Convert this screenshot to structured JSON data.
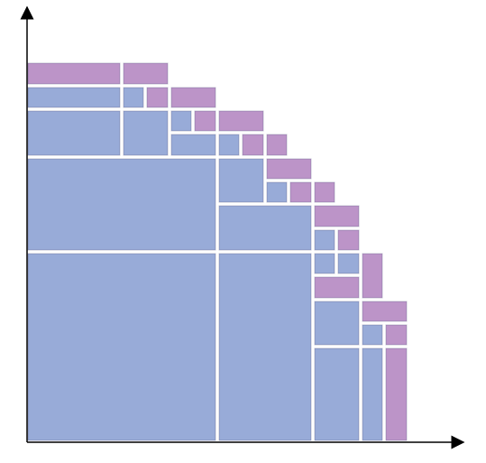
{
  "colors": {
    "blue": "#98abd8",
    "purple": "#bc94c8",
    "axis": "#000000",
    "background": "#ffffff"
  },
  "axes": {
    "x_arrow": true,
    "y_arrow": true
  },
  "blocks": [
    {
      "id": "r0-a",
      "color": "purple"
    },
    {
      "id": "r0-b",
      "color": "purple"
    },
    {
      "id": "r1-a",
      "color": "blue"
    },
    {
      "id": "r1-b",
      "color": "blue"
    },
    {
      "id": "r1-c",
      "color": "purple"
    },
    {
      "id": "r1-d",
      "color": "purple"
    },
    {
      "id": "r2-a",
      "color": "blue"
    },
    {
      "id": "r2-b",
      "color": "blue"
    },
    {
      "id": "r2-c",
      "color": "blue"
    },
    {
      "id": "r2-d",
      "color": "purple"
    },
    {
      "id": "r2-e",
      "color": "purple"
    },
    {
      "id": "r3-c",
      "color": "blue"
    },
    {
      "id": "r3-d",
      "color": "blue"
    },
    {
      "id": "r3-e",
      "color": "purple"
    },
    {
      "id": "r3-f",
      "color": "purple"
    },
    {
      "id": "big-a",
      "color": "blue"
    },
    {
      "id": "r4-d",
      "color": "blue"
    },
    {
      "id": "r4-e",
      "color": "purple"
    },
    {
      "id": "r5-e",
      "color": "blue"
    },
    {
      "id": "r5-f",
      "color": "purple"
    },
    {
      "id": "r5-g",
      "color": "purple"
    },
    {
      "id": "r6-d",
      "color": "blue"
    },
    {
      "id": "r6-e",
      "color": "purple"
    },
    {
      "id": "r7-e",
      "color": "blue"
    },
    {
      "id": "r7-f",
      "color": "purple"
    },
    {
      "id": "r8-e",
      "color": "blue"
    },
    {
      "id": "r8-f",
      "color": "blue"
    },
    {
      "id": "r8-g",
      "color": "purple"
    },
    {
      "id": "r9-f",
      "color": "purple"
    },
    {
      "id": "r9-g",
      "color": "purple"
    },
    {
      "id": "r10-f",
      "color": "blue"
    },
    {
      "id": "r10-g",
      "color": "blue"
    },
    {
      "id": "r10-h",
      "color": "purple"
    },
    {
      "id": "big-b",
      "color": "blue"
    },
    {
      "id": "col-d",
      "color": "blue"
    },
    {
      "id": "col-e",
      "color": "blue"
    },
    {
      "id": "col-f",
      "color": "blue"
    },
    {
      "id": "col-g",
      "color": "purple"
    }
  ]
}
